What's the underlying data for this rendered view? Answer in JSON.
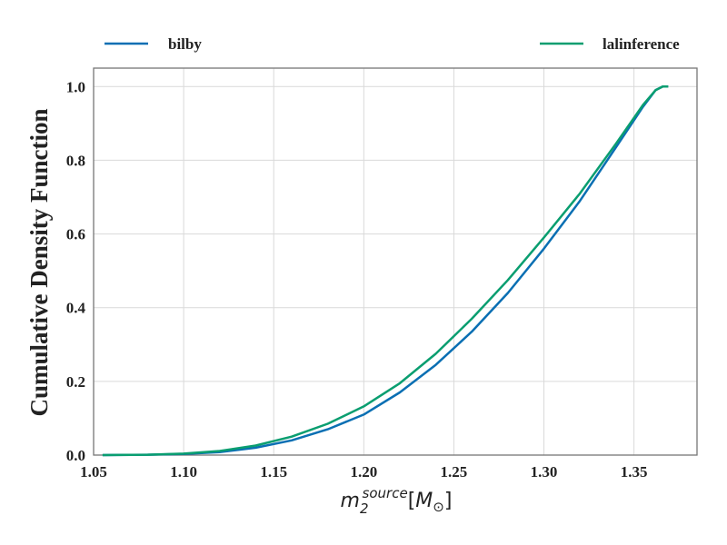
{
  "chart_data": {
    "type": "line",
    "xlabel": "m_2^source [M_⊙]",
    "ylabel": "Cumulative Density Function",
    "xlim": [
      1.05,
      1.385
    ],
    "ylim": [
      0.0,
      1.05
    ],
    "xticks": [
      1.05,
      1.1,
      1.15,
      1.2,
      1.25,
      1.3,
      1.35
    ],
    "xtick_labels": [
      "1.05",
      "1.10",
      "1.15",
      "1.20",
      "1.25",
      "1.30",
      "1.35"
    ],
    "yticks": [
      0.0,
      0.2,
      0.4,
      0.6,
      0.8,
      1.0
    ],
    "ytick_labels": [
      "0.0",
      "0.2",
      "0.4",
      "0.6",
      "0.8",
      "1.0"
    ],
    "grid": true,
    "legend_position": "top, above plot",
    "series": [
      {
        "name": "bilby",
        "color": "#0a6fb3",
        "x": [
          1.055,
          1.08,
          1.1,
          1.12,
          1.14,
          1.16,
          1.18,
          1.2,
          1.22,
          1.24,
          1.26,
          1.28,
          1.3,
          1.32,
          1.34,
          1.355,
          1.362,
          1.366,
          1.369
        ],
        "y": [
          0.0,
          0.001,
          0.003,
          0.008,
          0.02,
          0.04,
          0.07,
          0.11,
          0.17,
          0.245,
          0.335,
          0.44,
          0.56,
          0.69,
          0.835,
          0.945,
          0.99,
          1.0,
          1.0
        ]
      },
      {
        "name": "lalinference",
        "color": "#0a9e70",
        "x": [
          1.055,
          1.08,
          1.1,
          1.12,
          1.14,
          1.16,
          1.18,
          1.2,
          1.22,
          1.24,
          1.26,
          1.28,
          1.3,
          1.32,
          1.34,
          1.355,
          1.362,
          1.366,
          1.369
        ],
        "y": [
          0.0,
          0.001,
          0.004,
          0.011,
          0.026,
          0.05,
          0.085,
          0.132,
          0.195,
          0.275,
          0.37,
          0.475,
          0.59,
          0.71,
          0.845,
          0.95,
          0.99,
          1.0,
          1.0
        ]
      }
    ]
  }
}
